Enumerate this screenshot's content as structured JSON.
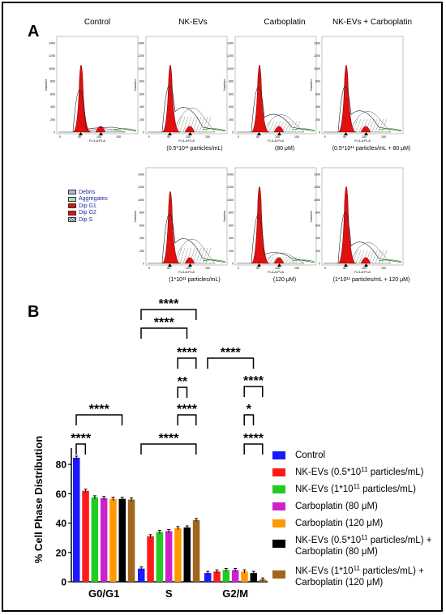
{
  "panel_a": {
    "letter": "A",
    "column_titles": [
      "Control",
      "NK-EVs",
      "Carboplatin",
      "NK-EVs + Carboplatin"
    ],
    "histogram_axis": {
      "ylabel": "Number",
      "xlabel": "FL3-A:PI-A",
      "yticks": [
        "0",
        "200",
        "400",
        "600",
        "800",
        "1000",
        "1200",
        "1400"
      ],
      "xticks": [
        "0",
        "50",
        "100",
        "150"
      ]
    },
    "row1_labels": [
      "",
      "(0.5*10¹¹ particles/mL)",
      "(80 μM)",
      "(0.5*10¹¹ particles/mL + 80 μM)"
    ],
    "row2_labels": [
      "(1*10¹¹ particles/mL)",
      "(120 μM)",
      "(1*10¹¹ particles/mL + 120 μM)"
    ],
    "legend": [
      {
        "label": "Debris",
        "color": "#b9b3dc"
      },
      {
        "label": "Aggregates",
        "color": "#a8e0a0"
      },
      {
        "label": "Dip G1",
        "color": "#e01010"
      },
      {
        "label": "Dip G2",
        "color": "#e01010"
      },
      {
        "label": "Dip S",
        "color": "#ffffff"
      }
    ]
  },
  "panel_b": {
    "letter": "B"
  },
  "chart_data": {
    "type": "bar",
    "ylabel": "% Cell Phase Distribution",
    "ylim": [
      0,
      90
    ],
    "yticks": [
      0,
      20,
      40,
      60,
      80
    ],
    "categories": [
      "G0/G1",
      "S",
      "G2/M"
    ],
    "series": [
      {
        "name": "Control",
        "color": "#1a1aff",
        "values": [
          84.5,
          9.0,
          6.0
        ]
      },
      {
        "name": "NK-EVs (0.5*10¹¹ particles/mL)",
        "color": "#ff1a1a",
        "values": [
          62.0,
          31.0,
          7.0
        ]
      },
      {
        "name": "NK-EVs (1*10¹¹ particles/mL)",
        "color": "#22cc22",
        "values": [
          57.5,
          34.0,
          8.0
        ]
      },
      {
        "name": "Carboplatin (80 μM)",
        "color": "#cc22cc",
        "values": [
          57.0,
          34.5,
          8.0
        ]
      },
      {
        "name": "Carboplatin (120 μM)",
        "color": "#ff9900",
        "values": [
          56.5,
          36.5,
          7.0
        ]
      },
      {
        "name": "NK-EVs (0.5*10¹¹ particles/mL) + Carboplatin (80 μM)",
        "color": "#000000",
        "values": [
          56.5,
          37.0,
          6.0
        ]
      },
      {
        "name": "NK-EVs (1*10¹¹ particles/mL) + Carboplatin (120 μM)",
        "color": "#a0651f",
        "values": [
          56.0,
          42.0,
          1.5
        ]
      }
    ],
    "legend_lines": [
      [
        "Control"
      ],
      [
        "NK-EVs (0.5*10",
        "11",
        " particles/mL)"
      ],
      [
        "NK-EVs (1*10",
        "11",
        " particles/mL)"
      ],
      [
        "Carboplatin (80 μM)"
      ],
      [
        "Carboplatin (120 μM)"
      ],
      [
        "NK-EVs (0.5*10",
        "11",
        " particles/mL) +",
        "Carboplatin (80 μM)"
      ],
      [
        "NK-EVs (1*10",
        "11",
        " particles/mL) +",
        "Carboplatin (120 μM)"
      ]
    ],
    "significance": [
      {
        "group": 0,
        "from": 0,
        "to": 1,
        "label": "****"
      },
      {
        "group": 0,
        "from": 0,
        "to": 5,
        "label": "****"
      },
      {
        "group": 1,
        "from": 1,
        "to": 4,
        "label": "**"
      },
      {
        "group": 1,
        "from": 0,
        "to": 6,
        "label": "****"
      },
      {
        "group": 1,
        "from": 1,
        "to": 5,
        "label": "****"
      },
      {
        "group": 1,
        "from": 0,
        "to": 5,
        "label": "****"
      },
      {
        "group": 1,
        "from": 0,
        "to": 6,
        "label": "****"
      },
      {
        "group": 1,
        "from": 4,
        "to": 6,
        "label": "****"
      },
      {
        "group": 2,
        "from": 3,
        "to": 5,
        "label": "*"
      },
      {
        "group": 2,
        "from": 0,
        "to": 5,
        "label": "****"
      },
      {
        "group": 2,
        "from": 4,
        "to": 6,
        "label": "****"
      },
      {
        "group": 2,
        "from": 5,
        "to": 6,
        "label": "****"
      }
    ]
  }
}
